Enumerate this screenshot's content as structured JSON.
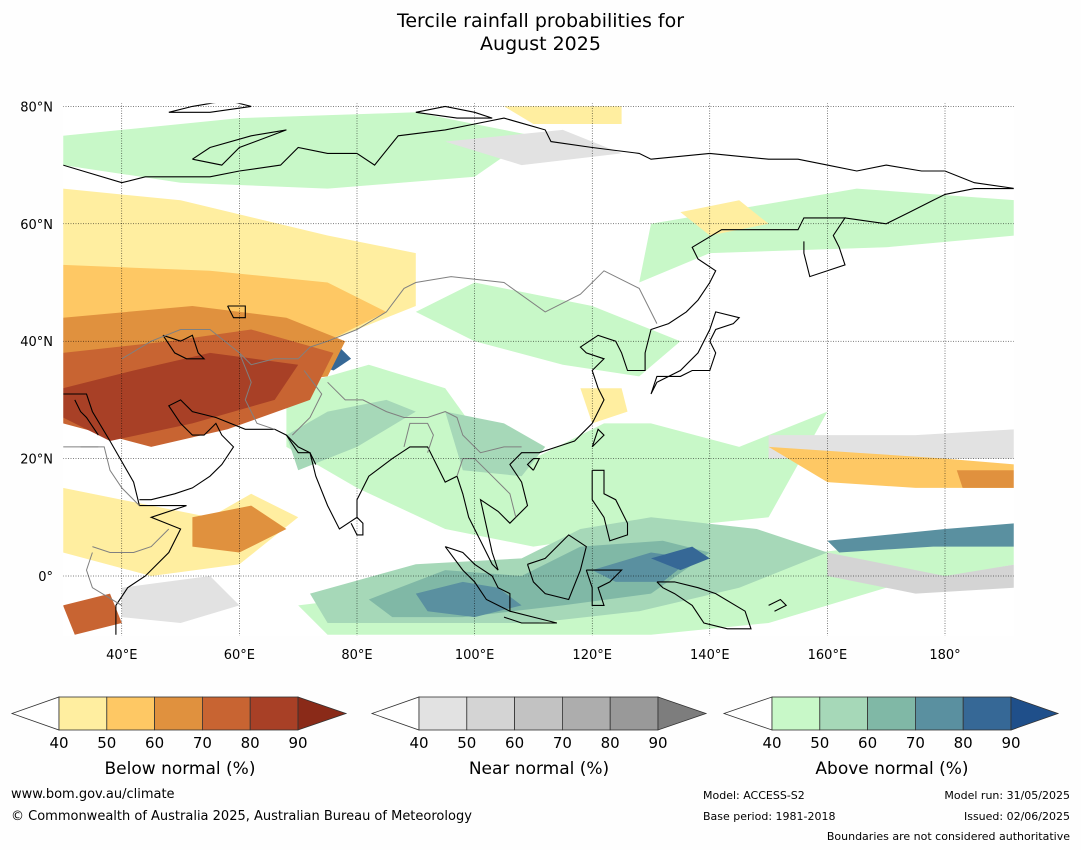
{
  "title_line1": "Tercile rainfall probabilities for",
  "title_line2": "August 2025",
  "map": {
    "lat_labels": [
      "80°N",
      "60°N",
      "40°N",
      "20°N",
      "0°"
    ],
    "lon_labels": [
      "40°E",
      "60°E",
      "80°E",
      "100°E",
      "120°E",
      "140°E",
      "160°E",
      "180°"
    ],
    "colors": {
      "below": [
        "#ffeea0",
        "#fec864",
        "#e0913e",
        "#c86432",
        "#a84026",
        "#8a2a18"
      ],
      "near": [
        "#e2e2e2",
        "#d4d4d4",
        "#c2c2c2",
        "#adadad",
        "#999999",
        "#7d7d7d"
      ],
      "above": [
        "#c8f8c8",
        "#a6d8b8",
        "#80b8a6",
        "#5a90a0",
        "#366896",
        "#1f4f8a"
      ]
    }
  },
  "colorbars": [
    {
      "id": "below",
      "label": "Below normal (%)",
      "ticks": [
        "40",
        "50",
        "60",
        "70",
        "80",
        "90"
      ]
    },
    {
      "id": "near",
      "label": "Near normal (%)",
      "ticks": [
        "40",
        "50",
        "60",
        "70",
        "80",
        "90"
      ]
    },
    {
      "id": "above",
      "label": "Above normal (%)",
      "ticks": [
        "40",
        "50",
        "60",
        "70",
        "80",
        "90"
      ]
    }
  ],
  "footer": {
    "website": "www.bom.gov.au/climate",
    "copyright": "© Commonwealth of Australia 2025, Australian Bureau of Meteorology",
    "model": "Model: ACCESS-S2",
    "base_period": "Base period: 1981-2018",
    "model_run": "Model run: 31/05/2025",
    "issued": "Issued: 02/06/2025",
    "disclaimer": "Boundaries are not considered authoritative"
  }
}
